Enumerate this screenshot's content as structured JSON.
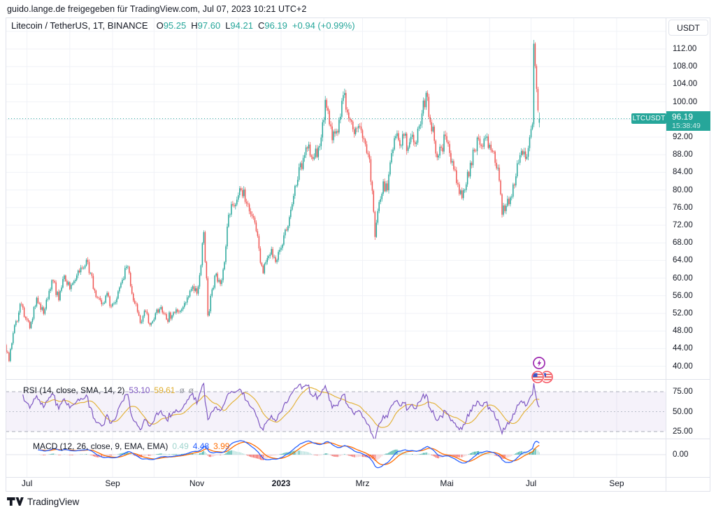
{
  "header": {
    "share_text": "guido.lange.de freigegeben für TradingView.com, Jul 07, 2023 10:21 UTC+2"
  },
  "legend": {
    "symbol": "Litecoin / TetherUS, 1T, BINANCE",
    "o_label": "O",
    "o": "95.25",
    "h_label": "H",
    "h": "97.60",
    "l_label": "L",
    "l": "94.21",
    "c_label": "C",
    "c": "96.19",
    "change": "+0.94 (+0.99%)"
  },
  "price_scale": {
    "currency": "USDT",
    "price_label": {
      "value": "96.19",
      "countdown": "15:38:49"
    }
  },
  "price_line_label": "LTCUSDT",
  "rsi_pane": {
    "title": "RSI (14, close, SMA, 14, 2)",
    "value": "53.10",
    "ma_value": "59.61",
    "empty": "ø",
    "ticks": [
      "75.00",
      "50.00",
      "25.00"
    ]
  },
  "macd_pane": {
    "title": "MACD (12, 26, close, 9, EMA, EMA)",
    "hist": "0.49",
    "macd": "4.48",
    "signal": "3.99",
    "tick": "0.00"
  },
  "footer": {
    "brand": "TradingView"
  },
  "events": {
    "icons": [
      "lightning-event-icon",
      "us-flags-event-icon"
    ]
  },
  "colors": {
    "up": "#26a69a",
    "down": "#ef5350",
    "price_line": "#26a69a",
    "label_bg": "#26a69a",
    "rsi": "#7e57c2",
    "rsi_ma": "#e3b33c",
    "rsi_band": "rgba(126,87,194,0.08)",
    "rsi_level_line": "#a9adb8",
    "rsi_mid_line": "#b9bdc9",
    "macd": "#2962ff",
    "signal": "#ff6d00",
    "hist_pos": "#26a69a",
    "hist_pos_light": "#b2dfdb",
    "hist_neg": "#ef5350",
    "hist_neg_light": "#f6c8ca",
    "grid": "#f0f2f7",
    "border": "#e0e3eb",
    "text": "#131722",
    "muted": "#787b86",
    "event_purple": "#9c27b0",
    "event_red": "#f7525f",
    "flag_blue": "#3a57c6",
    "flag_red": "#e84c4c"
  },
  "chart_data": {
    "type": "candlestick",
    "symbol": "LTCUSDT",
    "exchange": "BINANCE",
    "interval": "1T (daily)",
    "visible_range": {
      "start": "2022-06-14",
      "end": "2023-09-30"
    },
    "price_axis": {
      "min": 38,
      "max": 117,
      "tick_step": 4,
      "labeled_ticks": [
        112,
        108,
        104,
        100,
        92,
        88,
        84,
        80,
        76,
        72,
        68,
        64,
        60,
        56,
        52,
        48,
        44,
        40
      ]
    },
    "x_axis_labels": [
      {
        "text": "Jul",
        "date": "2022-07-01",
        "bold": false
      },
      {
        "text": "Sep",
        "date": "2022-09-01",
        "bold": false
      },
      {
        "text": "Nov",
        "date": "2022-11-01",
        "bold": false
      },
      {
        "text": "2023",
        "date": "2023-01-01",
        "bold": true
      },
      {
        "text": "Mrz",
        "date": "2023-03-01",
        "bold": false
      },
      {
        "text": "Mai",
        "date": "2023-05-01",
        "bold": false
      },
      {
        "text": "Jul",
        "date": "2023-07-01",
        "bold": false
      },
      {
        "text": "Sep",
        "date": "2023-09-01",
        "bold": false
      }
    ],
    "last_bar": {
      "date": "2023-07-07",
      "open": 95.25,
      "high": 97.6,
      "low": 94.21,
      "close": 96.19,
      "change": 0.94,
      "change_pct": 0.99
    },
    "current_price_line": 96.19,
    "close_anchors": [
      [
        "2022-06-14",
        45.5
      ],
      [
        "2022-06-16",
        43.2
      ],
      [
        "2022-06-18",
        41.2
      ],
      [
        "2022-06-21",
        47.5
      ],
      [
        "2022-06-26",
        54.0
      ],
      [
        "2022-06-30",
        51.0
      ],
      [
        "2022-07-03",
        48.5
      ],
      [
        "2022-07-08",
        55.5
      ],
      [
        "2022-07-13",
        52.0
      ],
      [
        "2022-07-17",
        57.0
      ],
      [
        "2022-07-20",
        59.5
      ],
      [
        "2022-07-24",
        55.0
      ],
      [
        "2022-07-28",
        60.5
      ],
      [
        "2022-08-01",
        57.5
      ],
      [
        "2022-08-05",
        59.5
      ],
      [
        "2022-08-08",
        61.5
      ],
      [
        "2022-08-13",
        64.0
      ],
      [
        "2022-08-16",
        61.0
      ],
      [
        "2022-08-20",
        55.5
      ],
      [
        "2022-08-24",
        54.0
      ],
      [
        "2022-08-28",
        56.5
      ],
      [
        "2022-08-31",
        53.5
      ],
      [
        "2022-09-04",
        55.5
      ],
      [
        "2022-09-08",
        59.5
      ],
      [
        "2022-09-12",
        62.5
      ],
      [
        "2022-09-15",
        56.5
      ],
      [
        "2022-09-19",
        52.5
      ],
      [
        "2022-09-22",
        50.0
      ],
      [
        "2022-09-25",
        52.5
      ],
      [
        "2022-09-28",
        49.5
      ],
      [
        "2022-10-02",
        52.0
      ],
      [
        "2022-10-06",
        53.5
      ],
      [
        "2022-10-10",
        50.5
      ],
      [
        "2022-10-14",
        51.5
      ],
      [
        "2022-10-18",
        52.5
      ],
      [
        "2022-10-22",
        53.5
      ],
      [
        "2022-10-26",
        56.0
      ],
      [
        "2022-10-29",
        58.0
      ],
      [
        "2022-11-01",
        56.5
      ],
      [
        "2022-11-04",
        63.0
      ],
      [
        "2022-11-06",
        70.5
      ],
      [
        "2022-11-08",
        60.0
      ],
      [
        "2022-11-09",
        51.5
      ],
      [
        "2022-11-12",
        57.5
      ],
      [
        "2022-11-15",
        61.0
      ],
      [
        "2022-11-18",
        58.5
      ],
      [
        "2022-11-21",
        63.5
      ],
      [
        "2022-11-24",
        74.5
      ],
      [
        "2022-11-27",
        76.5
      ],
      [
        "2022-12-01",
        79.0
      ],
      [
        "2022-12-05",
        80.0
      ],
      [
        "2022-12-08",
        76.5
      ],
      [
        "2022-12-11",
        74.0
      ],
      [
        "2022-12-14",
        70.5
      ],
      [
        "2022-12-17",
        63.5
      ],
      [
        "2022-12-19",
        61.0
      ],
      [
        "2022-12-22",
        64.5
      ],
      [
        "2022-12-25",
        66.5
      ],
      [
        "2022-12-28",
        63.5
      ],
      [
        "2022-12-31",
        66.5
      ],
      [
        "2023-01-03",
        69.5
      ],
      [
        "2023-01-06",
        72.0
      ],
      [
        "2023-01-09",
        77.0
      ],
      [
        "2023-01-12",
        81.0
      ],
      [
        "2023-01-14",
        85.0
      ],
      [
        "2023-01-18",
        88.0
      ],
      [
        "2023-01-21",
        90.5
      ],
      [
        "2023-01-24",
        87.0
      ],
      [
        "2023-01-28",
        89.5
      ],
      [
        "2023-02-01",
        96.0
      ],
      [
        "2023-02-02",
        100.5
      ],
      [
        "2023-02-04",
        98.0
      ],
      [
        "2023-02-07",
        91.5
      ],
      [
        "2023-02-10",
        93.5
      ],
      [
        "2023-02-13",
        96.5
      ],
      [
        "2023-02-15",
        101.5
      ],
      [
        "2023-02-17",
        98.5
      ],
      [
        "2023-02-20",
        96.0
      ],
      [
        "2023-02-23",
        92.5
      ],
      [
        "2023-02-26",
        94.5
      ],
      [
        "2023-02-28",
        93.5
      ],
      [
        "2023-03-03",
        90.5
      ],
      [
        "2023-03-06",
        87.0
      ],
      [
        "2023-03-08",
        80.0
      ],
      [
        "2023-03-10",
        69.5
      ],
      [
        "2023-03-13",
        77.5
      ],
      [
        "2023-03-16",
        82.0
      ],
      [
        "2023-03-19",
        80.0
      ],
      [
        "2023-03-22",
        88.5
      ],
      [
        "2023-03-25",
        92.0
      ],
      [
        "2023-03-28",
        90.0
      ],
      [
        "2023-03-31",
        92.5
      ],
      [
        "2023-04-03",
        89.5
      ],
      [
        "2023-04-06",
        92.5
      ],
      [
        "2023-04-09",
        91.0
      ],
      [
        "2023-04-11",
        94.5
      ],
      [
        "2023-04-14",
        100.0
      ],
      [
        "2023-04-17",
        101.0
      ],
      [
        "2023-04-19",
        95.5
      ],
      [
        "2023-04-22",
        91.0
      ],
      [
        "2023-04-24",
        87.5
      ],
      [
        "2023-04-27",
        89.5
      ],
      [
        "2023-04-30",
        92.0
      ],
      [
        "2023-05-03",
        88.5
      ],
      [
        "2023-05-06",
        84.5
      ],
      [
        "2023-05-09",
        81.5
      ],
      [
        "2023-05-12",
        78.0
      ],
      [
        "2023-05-15",
        81.5
      ],
      [
        "2023-05-18",
        86.0
      ],
      [
        "2023-05-21",
        89.0
      ],
      [
        "2023-05-24",
        91.5
      ],
      [
        "2023-05-27",
        90.0
      ],
      [
        "2023-05-29",
        92.0
      ],
      [
        "2023-06-01",
        90.5
      ],
      [
        "2023-06-04",
        88.5
      ],
      [
        "2023-06-07",
        85.0
      ],
      [
        "2023-06-10",
        74.5
      ],
      [
        "2023-06-13",
        76.5
      ],
      [
        "2023-06-16",
        78.5
      ],
      [
        "2023-06-19",
        81.0
      ],
      [
        "2023-06-22",
        86.0
      ],
      [
        "2023-06-25",
        88.0
      ],
      [
        "2023-06-27",
        87.0
      ],
      [
        "2023-06-29",
        89.5
      ],
      [
        "2023-06-30",
        92.0
      ],
      [
        "2023-07-01",
        94.0
      ],
      [
        "2023-07-02",
        95.0
      ],
      [
        "2023-07-03",
        113.0
      ],
      [
        "2023-07-04",
        108.0
      ],
      [
        "2023-07-05",
        103.0
      ],
      [
        "2023-07-06",
        98.0
      ],
      [
        "2023-07-07",
        96.19
      ]
    ],
    "indicators": {
      "rsi": {
        "params": [
          14,
          "close",
          "SMA",
          14,
          2
        ],
        "current": 53.1,
        "ma_current": 59.61,
        "levels": [
          75,
          50,
          25
        ],
        "range_ticks": [
          75.0,
          50.0,
          25.0
        ]
      },
      "macd": {
        "params": [
          12,
          26,
          "close",
          9,
          "EMA",
          "EMA"
        ],
        "histogram_current": 0.49,
        "macd_current": 4.48,
        "signal_current": 3.99,
        "zero_tick": 0.0
      }
    }
  }
}
